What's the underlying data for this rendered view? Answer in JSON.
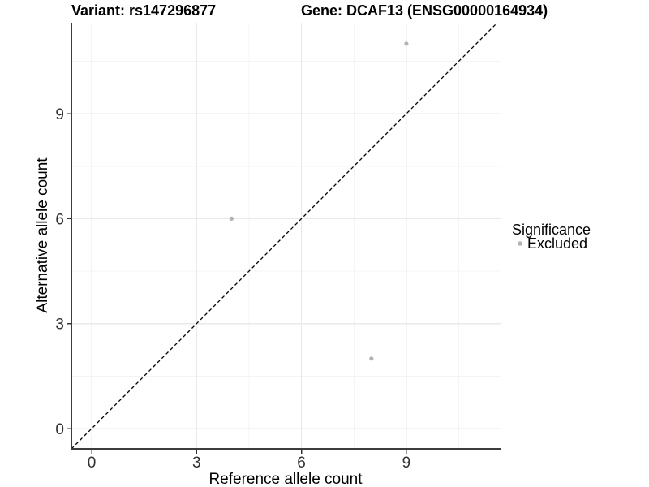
{
  "titles": {
    "variant": "Variant: rs147296877",
    "gene": "Gene: DCAF13 (ENSG00000164934)"
  },
  "legend": {
    "title": "Significance",
    "items": [
      {
        "label": "Excluded",
        "color": "#b3b3b3"
      }
    ]
  },
  "colors": {
    "point": "#b3b3b3",
    "axis_line": "#3c3c3c",
    "tick": "#333333",
    "grid_major": "#e9e9e9",
    "grid_minor": "#f4f4f4",
    "reference_line": "#000000",
    "background": "#ffffff"
  },
  "chart_data": {
    "type": "scatter",
    "title": "Variant: rs147296877 | Gene: DCAF13 (ENSG00000164934)",
    "xlabel": "Reference allele count",
    "ylabel": "Alternative allele count",
    "x_ticks": [
      0,
      3,
      6,
      9
    ],
    "y_ticks": [
      0,
      3,
      6,
      9
    ],
    "xlim": [
      -0.58,
      11.69
    ],
    "ylim": [
      -0.58,
      11.6
    ],
    "minor_grid_step": 1.5,
    "grid": true,
    "legend_position": "right",
    "series": [
      {
        "name": "Excluded",
        "color": "#b3b3b3",
        "points": [
          {
            "x": 4,
            "y": 6
          },
          {
            "x": 8,
            "y": 2
          },
          {
            "x": 9,
            "y": 11
          }
        ]
      }
    ],
    "reference_line": {
      "slope": 1,
      "intercept": 0,
      "linetype": "dashed",
      "color": "#000000"
    }
  }
}
